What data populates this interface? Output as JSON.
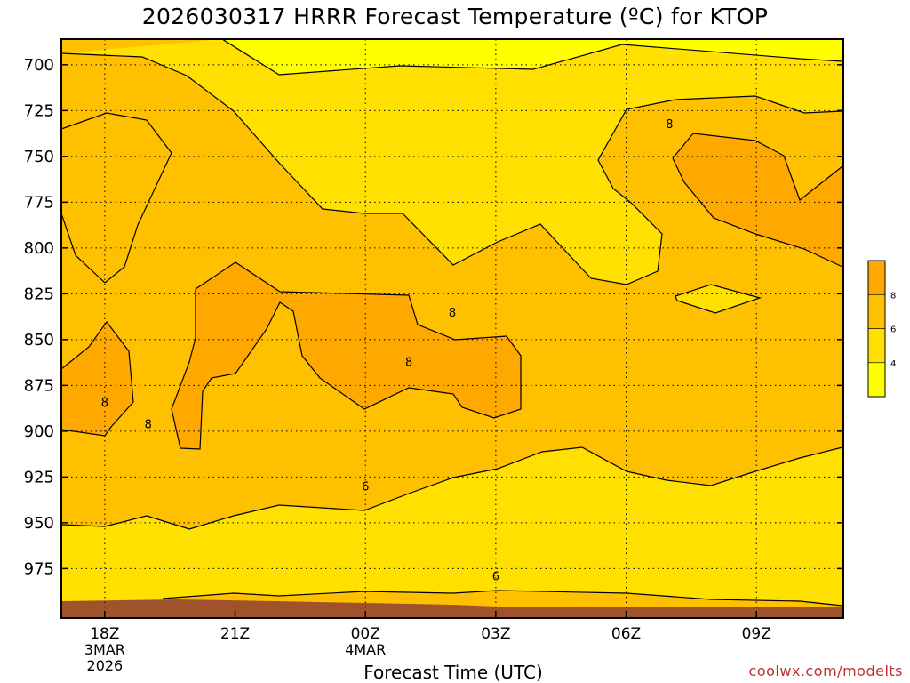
{
  "title": "2026030317 HRRR Forecast Temperature (ºC) for KTOP",
  "credit": "coolwx.com/modelts",
  "chart_data": {
    "type": "contour",
    "title": "2026030317 HRRR Forecast Temperature (ºC) for KTOP",
    "xlabel": "Forecast Time (UTC)",
    "ylabel": "",
    "y_axis": {
      "ticks": [
        700,
        725,
        750,
        775,
        800,
        825,
        850,
        875,
        900,
        925,
        950,
        975
      ],
      "range": [
        686,
        1002
      ],
      "units": "hPa",
      "direction": "pressure increases downward"
    },
    "x_axis": {
      "range_hours_after_init": [
        0,
        18
      ],
      "ticks": [
        {
          "hour": 1,
          "lines": [
            "18Z",
            "3MAR",
            "2026"
          ]
        },
        {
          "hour": 4,
          "lines": [
            "21Z"
          ]
        },
        {
          "hour": 7,
          "lines": [
            "00Z",
            "4MAR"
          ]
        },
        {
          "hour": 10,
          "lines": [
            "03Z"
          ]
        },
        {
          "hour": 13,
          "lines": [
            "06Z"
          ]
        },
        {
          "hour": 16,
          "lines": [
            "09Z"
          ]
        }
      ]
    },
    "grid": true,
    "legend": {
      "placement": "right",
      "labels": [
        "4",
        "6",
        "8"
      ],
      "fills": [
        "#ffff00",
        "#ffe000",
        "#ffc000",
        "#ffa800"
      ]
    },
    "contour_labels": [
      {
        "text": "8",
        "hour": 1.0,
        "p": 884
      },
      {
        "text": "8",
        "hour": 2.0,
        "p": 896
      },
      {
        "text": "8",
        "hour": 8.0,
        "p": 862
      },
      {
        "text": "8",
        "hour": 9.0,
        "p": 835
      },
      {
        "text": "8",
        "hour": 14.0,
        "p": 732
      },
      {
        "text": "6",
        "hour": 7.0,
        "p": 930
      },
      {
        "text": "6",
        "hour": 10.0,
        "p": 979
      }
    ],
    "colors": {
      "lt4": "#ffff00",
      "t4_6": "#ffe000",
      "t6_8": "#ffc000",
      "gt8": "#ffa800",
      "ground": "#a0522d"
    }
  }
}
